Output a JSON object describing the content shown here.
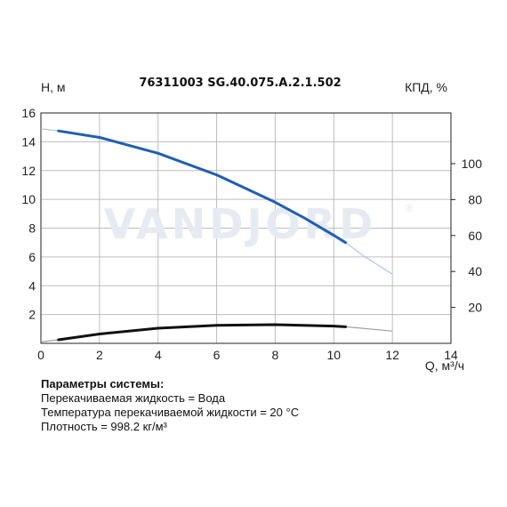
{
  "chart_data": {
    "type": "line",
    "title": "76311003 SG.40.075.A.2.1.502",
    "watermark": "VANDJORD",
    "watermark_mark": "®",
    "ylabel": "H, м",
    "y2label": "КПД, %",
    "xlabel": "Q, м³/ч",
    "xlim": [
      0,
      14
    ],
    "ylim": [
      0,
      16
    ],
    "y2lim": [
      0,
      100
    ],
    "x_ticks": [
      "0",
      "2",
      "4",
      "6",
      "8",
      "10",
      "12",
      "14"
    ],
    "y_ticks": [
      "2",
      "4",
      "6",
      "8",
      "10",
      "12",
      "14",
      "16"
    ],
    "y2_ticks": [
      "20",
      "40",
      "60",
      "80",
      "100"
    ],
    "grid": true,
    "series": [
      {
        "role": "head-curve",
        "color": "#1f5fb4",
        "extension_color": "#a9c3e6",
        "x": [
          0,
          0.6,
          2,
          4,
          6,
          8,
          9,
          10,
          10.4,
          11,
          12
        ],
        "y": [
          14.9,
          14.75,
          14.3,
          13.2,
          11.7,
          9.8,
          8.7,
          7.5,
          7.0,
          6.1,
          4.8
        ],
        "operating_range": [
          0.6,
          10.4
        ]
      },
      {
        "role": "efficiency-curve",
        "color": "#111111",
        "extension_color": "#a0a0a0",
        "x": [
          0,
          0.6,
          2,
          4,
          6,
          8,
          10,
          10.4,
          12
        ],
        "y": [
          0.1,
          0.25,
          0.65,
          1.05,
          1.25,
          1.3,
          1.2,
          1.15,
          0.85
        ],
        "operating_range": [
          0.6,
          10.4
        ]
      }
    ]
  },
  "params": {
    "heading": "Параметры системы:",
    "lines": [
      "Перекачиваемая жидкость = Вода",
      "Температура перекачиваемой жидкости = 20 °C",
      "Плотность = 998.2 кг/м³"
    ]
  }
}
